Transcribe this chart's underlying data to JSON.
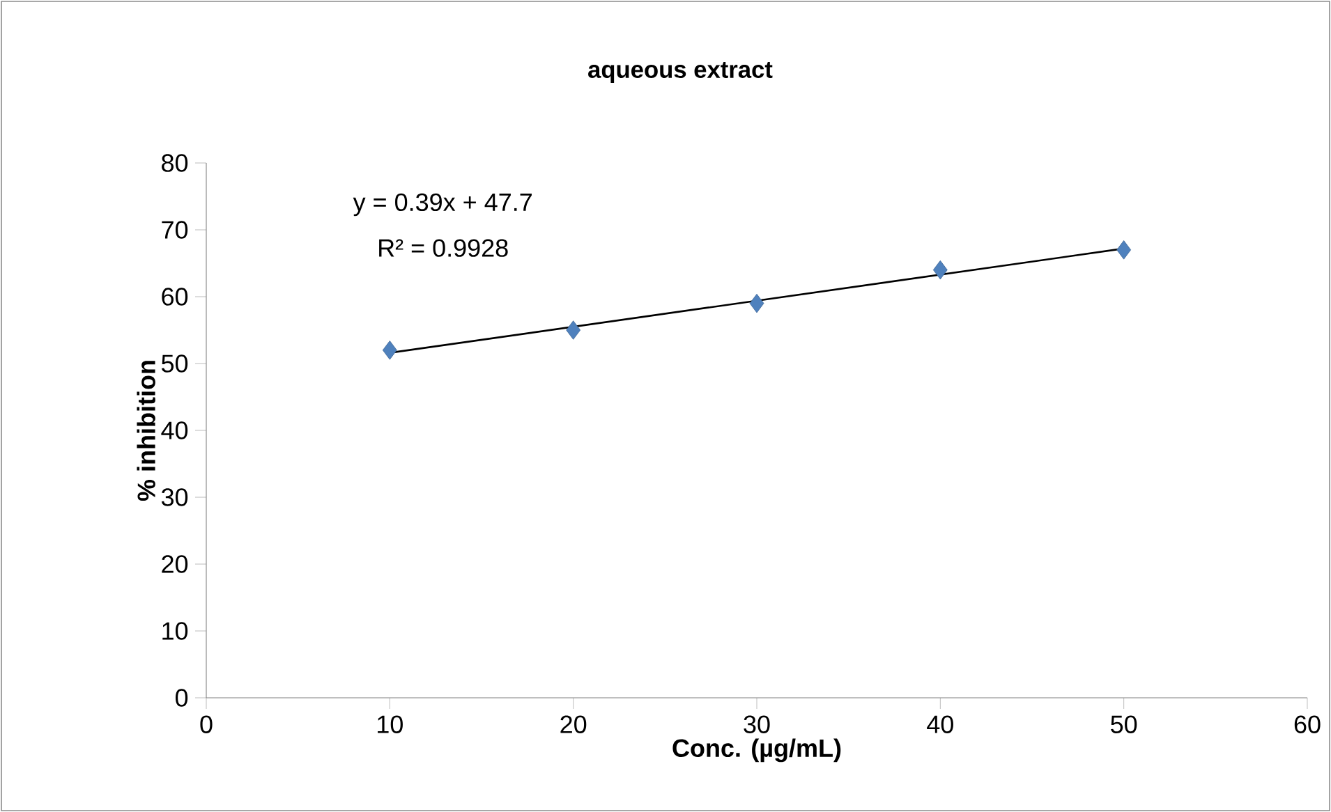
{
  "chart_data": {
    "type": "scatter",
    "title": "aqueous extract",
    "xlabel": "Conc. (µg/mL)",
    "ylabel": "% inhibition",
    "xlim": [
      0,
      60
    ],
    "xticks": [
      0,
      10,
      20,
      30,
      40,
      50,
      60
    ],
    "ylim": [
      0,
      80
    ],
    "yticks": [
      0,
      10,
      20,
      30,
      40,
      50,
      60,
      70,
      80
    ],
    "grid": false,
    "series": [
      {
        "x": [
          10,
          20,
          30,
          40,
          50
        ],
        "values": [
          52,
          55,
          59,
          64,
          67
        ],
        "color": "#4f81bd",
        "marker": "diamond"
      },
      {
        "type": "line",
        "x": [
          10,
          50
        ],
        "values": [
          51.6,
          67.2
        ],
        "color": "#000000",
        "marker": "none",
        "line_style": "solid"
      }
    ],
    "annotations": [
      "y = 0.39x + 47.7",
      "R² = 0.9928"
    ]
  }
}
